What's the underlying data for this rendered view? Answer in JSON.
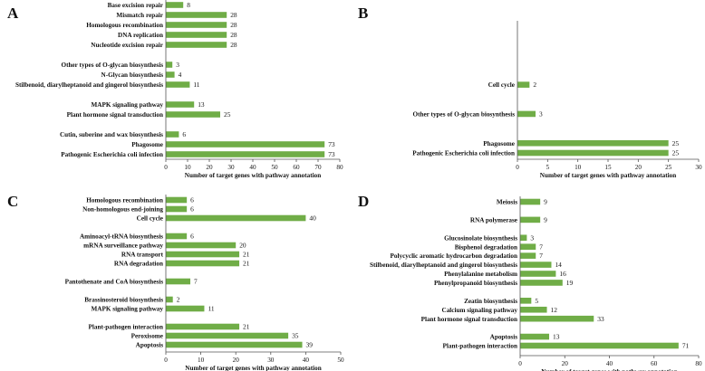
{
  "chart_data": [
    {
      "panel": "A",
      "type": "bar",
      "orientation": "horizontal",
      "xlabel": "Number of target genes with pathway annotation",
      "xlim": [
        0,
        80
      ],
      "xticks": [
        0,
        10,
        20,
        30,
        40,
        50,
        60,
        70,
        80
      ],
      "categories": [
        "Base excision repair",
        "Mismatch repair",
        "Homologous recombination",
        "DNA replication",
        "Nucleotide excision repair",
        "",
        "Other types of O-glycan biosynthesis",
        "N-Glycan biosynthesis",
        "Stilbenoid, diarylheptanoid and gingerol biosynthesis",
        "",
        "MAPK signaling pathway",
        "Plant hormone signal transduction",
        "",
        "Cutin, suberine and wax biosynthesis",
        "Phagosome",
        "Pathogenic Escherichia coli infection"
      ],
      "values": [
        8,
        28,
        28,
        28,
        28,
        null,
        3,
        4,
        11,
        null,
        13,
        25,
        null,
        6,
        73,
        73
      ]
    },
    {
      "panel": "B",
      "type": "bar",
      "orientation": "horizontal",
      "xlabel": "Number of target genes with pathway annotation",
      "xlim": [
        0,
        30
      ],
      "xticks": [
        0,
        5,
        10,
        15,
        20,
        25,
        30
      ],
      "categories": [
        "",
        "",
        "",
        "",
        "",
        "",
        "Cell cycle",
        "",
        "",
        "Other types of O-glycan biosynthesis",
        "",
        "",
        "Phagosome",
        "Pathogenic Escherichia coli infection"
      ],
      "values": [
        null,
        null,
        null,
        null,
        null,
        null,
        2,
        null,
        null,
        3,
        null,
        null,
        25,
        25
      ]
    },
    {
      "panel": "C",
      "type": "bar",
      "orientation": "horizontal",
      "xlabel": "Number of target genes with pathway annotation",
      "xlim": [
        0,
        50
      ],
      "xticks": [
        0,
        10,
        20,
        30,
        40,
        50
      ],
      "categories": [
        "Homologous recombination",
        "Non-homologous end-joining",
        "Cell cycle",
        "",
        "Aminoacyl-tRNA biosynthesis",
        "mRNA surveillance pathway",
        "RNA transport",
        "RNA degradation",
        "",
        "Pantothenate and CoA biosynthesis",
        "",
        "Brassinosteroid biosynthesis",
        "MAPK signaling pathway",
        "",
        "Plant-pathogen interaction",
        "Peroxisome",
        "Apoptosis"
      ],
      "values": [
        6,
        6,
        40,
        null,
        6,
        20,
        21,
        21,
        null,
        7,
        null,
        2,
        11,
        null,
        21,
        35,
        39
      ]
    },
    {
      "panel": "D",
      "type": "bar",
      "orientation": "horizontal",
      "xlabel": "Number of target genes with pathway annotation",
      "xlim": [
        0,
        80
      ],
      "xticks": [
        0,
        20,
        40,
        60,
        80
      ],
      "categories": [
        "Meiosis",
        "",
        "RNA polymerase",
        "",
        "Glucosinolate biosynthesis",
        "Bisphenol degradation",
        "Polycyclic aromatic hydrocarbon degradation",
        "Stilbenoid, diarylheptanoid and gingerol biosynthesis",
        "Phenylalanine metabolism",
        "Phenylpropanoid biosynthesis",
        "",
        "Zeatin biosynthesis",
        "Calcium signaling pathway",
        "Plant hormone signal transduction",
        "",
        "Apoptosis",
        "Plant-pathogen interaction"
      ],
      "values": [
        9,
        null,
        9,
        null,
        3,
        7,
        7,
        14,
        16,
        19,
        null,
        5,
        12,
        33,
        null,
        13,
        71
      ]
    }
  ]
}
